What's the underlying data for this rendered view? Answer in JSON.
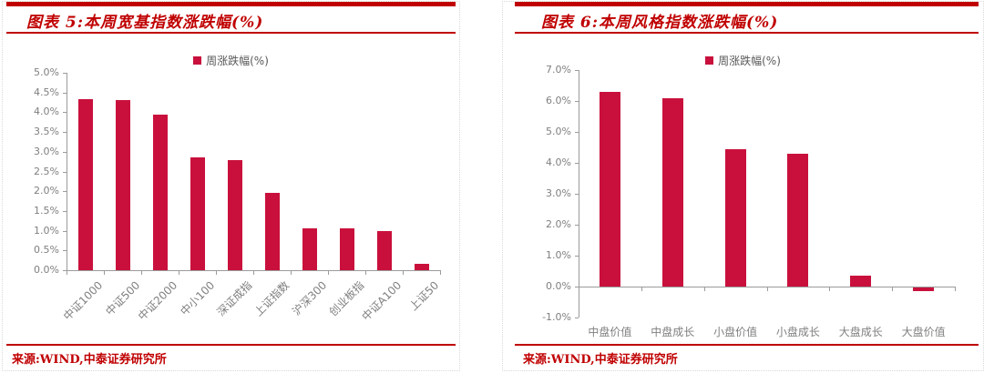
{
  "colors": {
    "accent_red": "#c00000",
    "bar": "#c9103c",
    "axis_gray": "#9b9b9b",
    "tick_text_gray": "#7f7f7f",
    "legend_text_gray": "#595959",
    "panel_border_gray": "#d9d9d9"
  },
  "chart_data": [
    {
      "type": "bar",
      "title": "图表 5:本周宽基指数涨跌幅(%)",
      "legend": "周涨跌幅(%)",
      "legend_position": "top-center",
      "categories": [
        "中证1000",
        "中证500",
        "中证2000",
        "中小100",
        "深证成指",
        "上证指数",
        "沪深300",
        "创业板指",
        "中证A100",
        "上证50"
      ],
      "values": [
        4.33,
        4.3,
        3.95,
        2.85,
        2.78,
        1.95,
        1.07,
        1.05,
        1.0,
        0.15
      ],
      "ylim": [
        0,
        5
      ],
      "ytick_step": 0.5,
      "ytick_format": "0.0%",
      "grid": false,
      "bar_color": "#c9103c",
      "x_label_rotation": -45,
      "source": "来源:WIND,中泰证券研究所"
    },
    {
      "type": "bar",
      "title": "图表 6:本周风格指数涨跌幅(%)",
      "legend": "周涨跌幅(%)",
      "legend_position": "top-center",
      "categories": [
        "中盘价值",
        "中盘成长",
        "小盘价值",
        "小盘成长",
        "大盘成长",
        "大盘价值"
      ],
      "values": [
        6.3,
        6.1,
        4.45,
        4.28,
        0.35,
        -0.1
      ],
      "ylim": [
        -1,
        7
      ],
      "ytick_step": 1,
      "ytick_format": "0.0%",
      "grid": false,
      "bar_color": "#c9103c",
      "x_label_rotation": 0,
      "source": "来源:WIND,中泰证券研究所"
    }
  ]
}
